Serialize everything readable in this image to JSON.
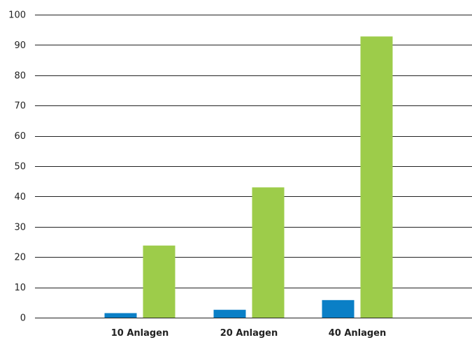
{
  "chart_data": {
    "type": "bar",
    "categories": [
      "10 Anlagen",
      "20 Anlagen",
      "40 Anlagen"
    ],
    "series": [
      {
        "values": [
          1.5,
          2.6,
          5.8
        ],
        "color": "#0a7fc6"
      },
      {
        "values": [
          23.8,
          43,
          92.8
        ],
        "color": "#9dcc4a"
      }
    ],
    "title": "",
    "xlabel": "",
    "ylabel": "",
    "ylim": [
      0,
      100
    ],
    "yticks": [
      0,
      10,
      20,
      30,
      40,
      50,
      60,
      70,
      80,
      90,
      100
    ],
    "grid": true,
    "legend": "none"
  }
}
